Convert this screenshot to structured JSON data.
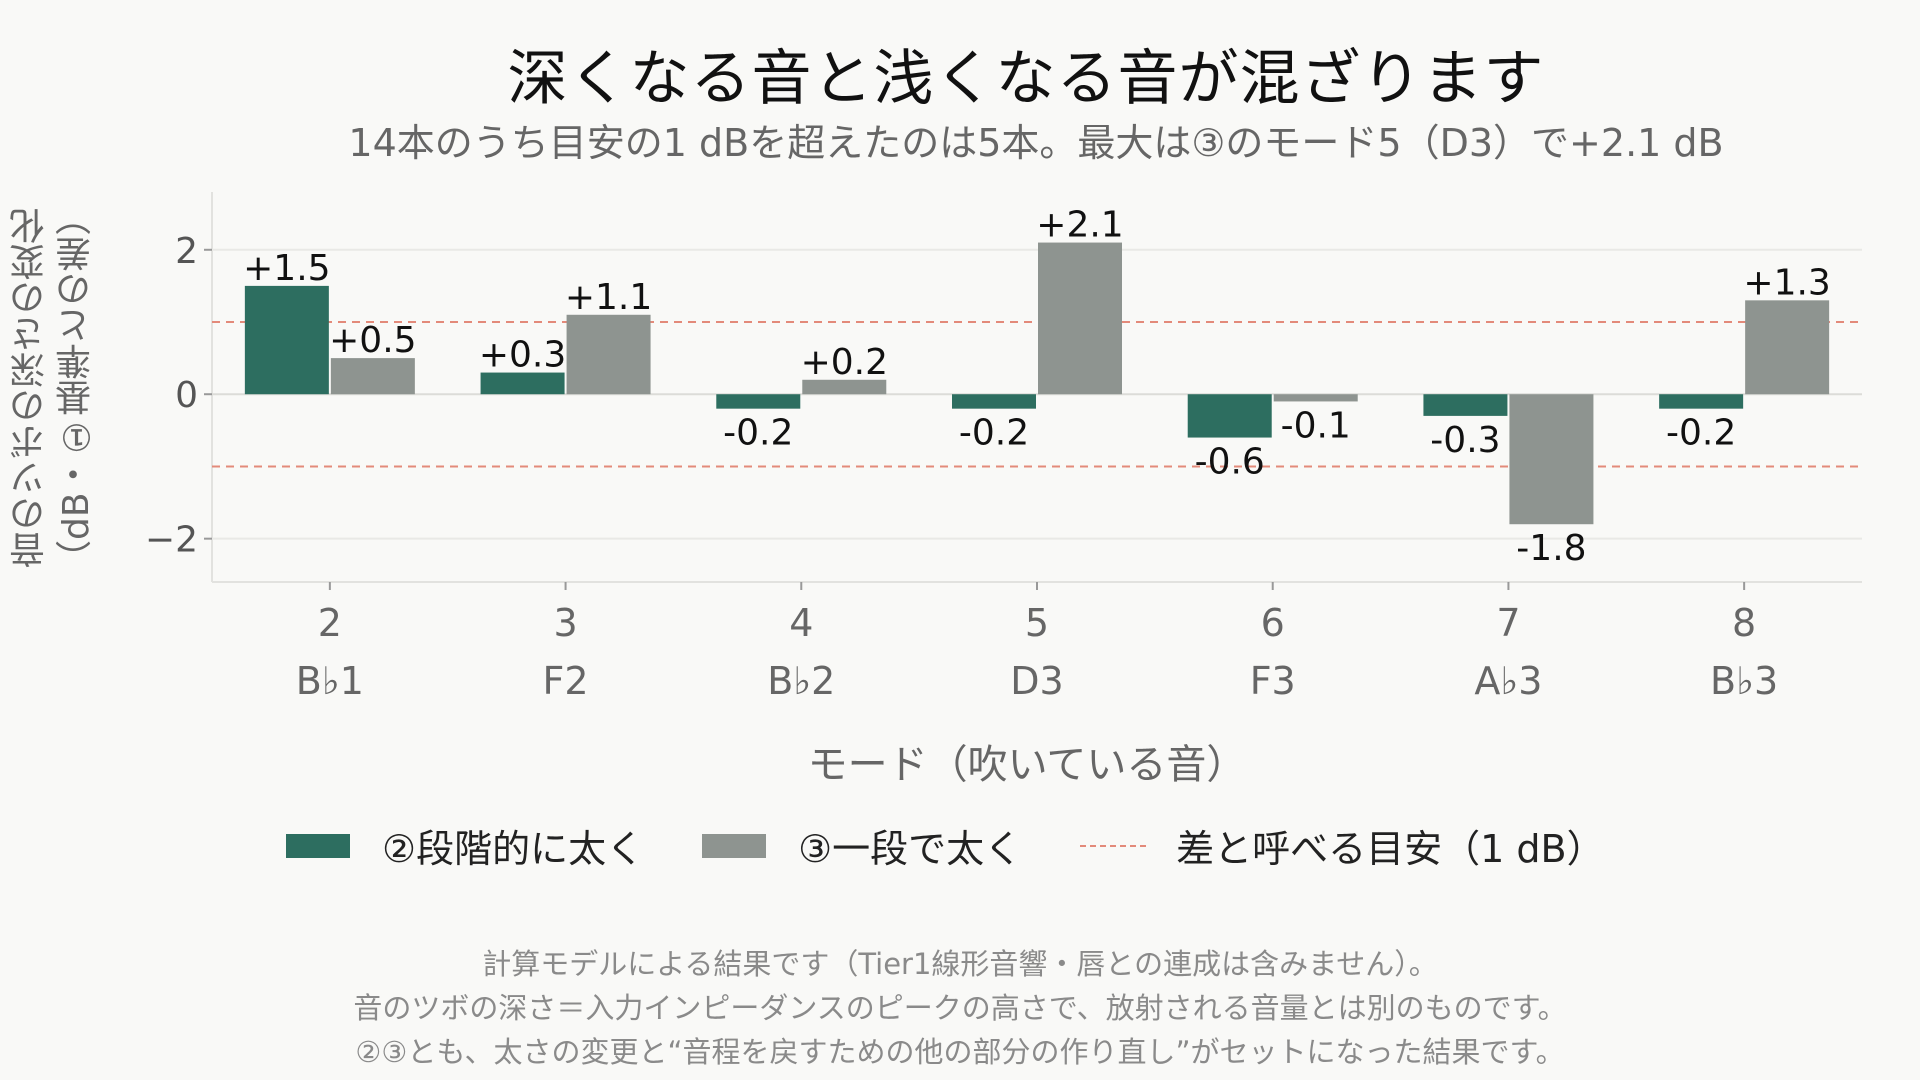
{
  "title": "深くなる音と浅くなる音が混ざります",
  "subtitle": "14本のうち目安の1 dBを超えたのは5本。最大は③のモード5（D3）で+2.1 dB",
  "notes": [
    "計算モデルによる結果です（Tier1線形音響・唇との連成は含みません）。",
    "音のツボの深さ＝入力インピーダンスのピークの高さで、放射される音量とは別のものです。",
    "②③とも、太さの変更と“音程を戻すための他の部分の作り直し”がセットになった結果です。"
  ],
  "legend": {
    "series1": "②段階的に太く",
    "series2": "③一段で太く",
    "threshold": "差と呼べる目安（1 dB）"
  },
  "colors": {
    "series1": "#2d6e60",
    "series2": "#8e9490",
    "threshold": "#e38a7a",
    "grid": "#e9e9e6"
  },
  "chart_data": {
    "type": "bar",
    "title": "深くなる音と浅くなる音が混ざります",
    "subtitle": "14本のうち目安の1 dBを超えたのは5本。最大は③のモード5（D3）で+2.1 dB",
    "xlabel": "モード（吹いている音）",
    "ylabel": [
      "音のツボの深さの変化",
      "（dB・①基準との差）"
    ],
    "categories": [
      "2",
      "3",
      "4",
      "5",
      "6",
      "7",
      "8"
    ],
    "category_notes": [
      "B♭1",
      "F2",
      "B♭2",
      "D3",
      "F3",
      "A♭3",
      "B♭3"
    ],
    "series": [
      {
        "name": "②段階的に太く",
        "values": [
          1.5,
          0.3,
          -0.2,
          -0.2,
          -0.6,
          -0.3,
          -0.2
        ],
        "labels": [
          "+1.5",
          "+0.3",
          "-0.2",
          "-0.2",
          "-0.6",
          "-0.3",
          "-0.2"
        ]
      },
      {
        "name": "③一段で太く",
        "values": [
          0.5,
          1.1,
          0.2,
          2.1,
          -0.1,
          -1.8,
          1.3
        ],
        "labels": [
          "+0.5",
          "+1.1",
          "+0.2",
          "+2.1",
          "-0.1",
          "-1.8",
          "+1.3"
        ]
      }
    ],
    "threshold_lines": [
      1,
      -1
    ],
    "yticks": [
      "−2",
      "0",
      "2"
    ],
    "ytick_values": [
      -2,
      0,
      2
    ],
    "ylim": [
      -2.6,
      2.8
    ],
    "grid": true,
    "legend_position": "bottom"
  }
}
